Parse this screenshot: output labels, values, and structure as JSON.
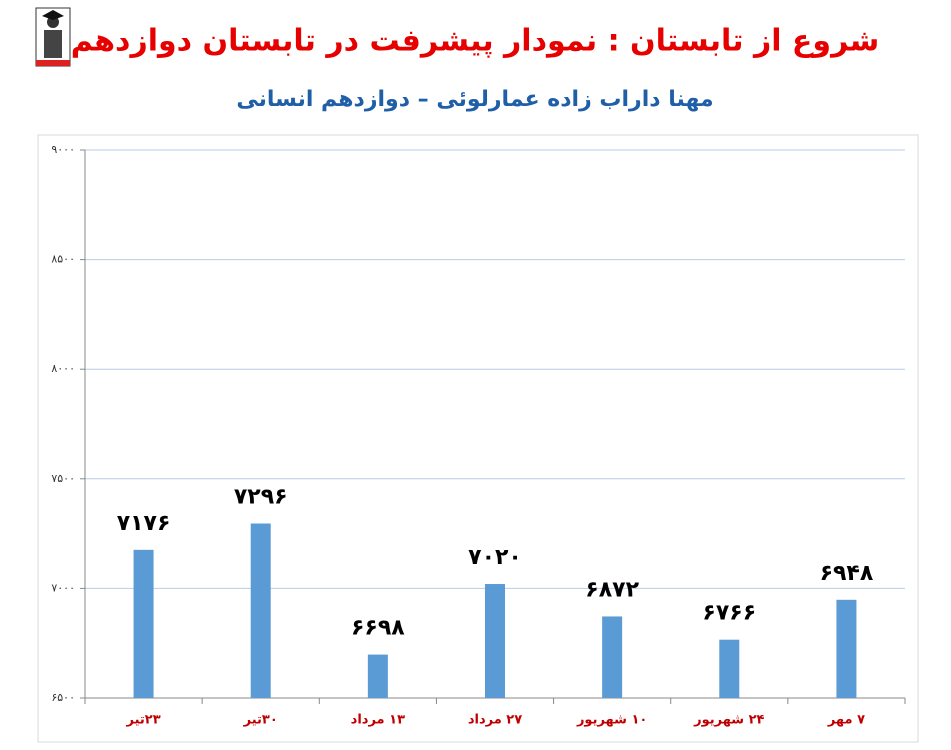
{
  "chart_data": {
    "type": "bar",
    "title": "شروع از تابستان : نمودار پیشرفت در تابستان دوازدهم",
    "subtitle": "مهنا داراب زاده عمارلوئی – دوازدهم انسانی",
    "categories": [
      "۲۳تیر",
      "۳۰تیر",
      "۱۳ مرداد",
      "۲۷ مرداد",
      "۱۰ شهریور",
      "۲۴ شهریور",
      "۷ مهر"
    ],
    "values": [
      7176,
      7296,
      6698,
      7020,
      6872,
      6766,
      6948
    ],
    "value_labels": [
      "۷۱۷۶",
      "۷۲۹۶",
      "۶۶۹۸",
      "۷۰۲۰",
      "۶۸۷۲",
      "۶۷۶۶",
      "۶۹۴۸"
    ],
    "color": "#5b9bd5",
    "ylim": [
      6500,
      9000
    ],
    "yticks": [
      {
        "value": 6500,
        "label": "۶۵۰۰"
      },
      {
        "value": 7000,
        "label": "۷۰۰۰"
      },
      {
        "value": 7500,
        "label": "۷۵۰۰"
      },
      {
        "value": 8000,
        "label": "۸۰۰۰"
      },
      {
        "value": 8500,
        "label": "۸۵۰۰"
      },
      {
        "value": 9000,
        "label": "۹۰۰۰"
      }
    ],
    "grid": true
  }
}
